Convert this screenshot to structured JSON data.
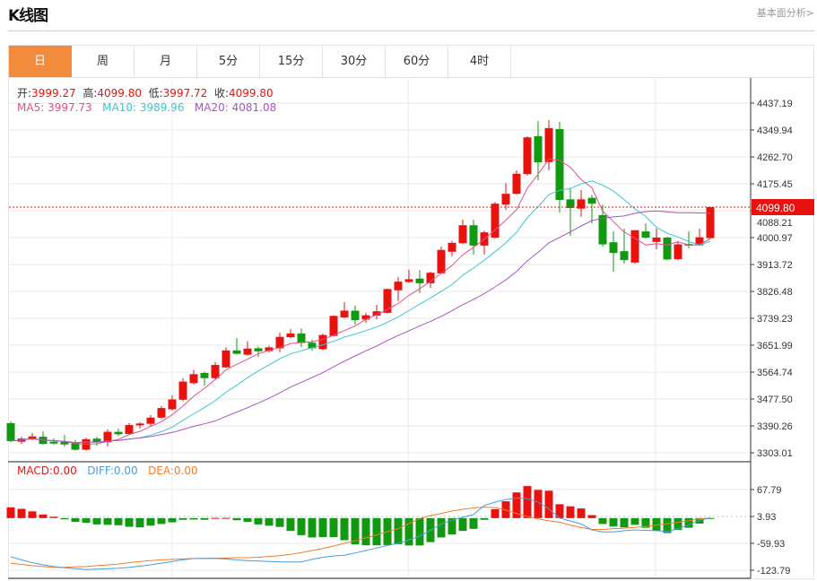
{
  "header": {
    "title": "K线图",
    "fundamental_link": "基本面分析>"
  },
  "tabs": [
    {
      "label": "日",
      "active": true
    },
    {
      "label": "周"
    },
    {
      "label": "月"
    },
    {
      "label": "5分"
    },
    {
      "label": "15分"
    },
    {
      "label": "30分"
    },
    {
      "label": "60分"
    },
    {
      "label": "4时"
    }
  ],
  "ohlc_info": {
    "open_label": "开:",
    "open": "3999.27",
    "high_label": "高:",
    "high": "4099.80",
    "low_label": "低:",
    "low": "3997.72",
    "close_label": "收:",
    "close": "4099.80"
  },
  "ma_info": {
    "ma5": "MA5: 3997.73",
    "ma10": "MA10: 3989.96",
    "ma20": "MA20: 4081.08"
  },
  "macd_info": {
    "macd": "MACD:0.00",
    "diff": "DIFF:0.00",
    "dea": "DEA:0.00"
  },
  "colors": {
    "accent": "#f28b3c",
    "up": "#e8130f",
    "down": "#119a11",
    "ma5": "#e0508a",
    "ma10": "#3cc6cc",
    "ma20": "#a655c0",
    "diff": "#4a9be0",
    "dea": "#f07c2a"
  },
  "chart_data": [
    {
      "type": "candlestick",
      "ylim": [
        3303.01,
        4437.19
      ],
      "y_ticks": [
        "4437.19",
        "4349.94",
        "4262.70",
        "4175.45",
        "4088.21",
        "4000.97",
        "3913.72",
        "3826.48",
        "3739.23",
        "3651.99",
        "3564.74",
        "3477.50",
        "3390.26",
        "3303.01"
      ],
      "last_price": "4099.80",
      "moving_averages": [
        5,
        10,
        20
      ],
      "ohlc": [
        [
          3399,
          3405,
          3338,
          3341
        ],
        [
          3339,
          3355,
          3332,
          3349
        ],
        [
          3346,
          3367,
          3344,
          3356
        ],
        [
          3355,
          3373,
          3328,
          3332
        ],
        [
          3339,
          3350,
          3330,
          3333
        ],
        [
          3339,
          3361,
          3323,
          3330
        ],
        [
          3335,
          3345,
          3310,
          3313
        ],
        [
          3313,
          3352,
          3310,
          3347
        ],
        [
          3349,
          3355,
          3326,
          3337
        ],
        [
          3337,
          3379,
          3323,
          3371
        ],
        [
          3371,
          3382,
          3358,
          3363
        ],
        [
          3364,
          3399,
          3361,
          3393
        ],
        [
          3392,
          3402,
          3382,
          3398
        ],
        [
          3397,
          3425,
          3390,
          3417
        ],
        [
          3417,
          3455,
          3412,
          3448
        ],
        [
          3444,
          3490,
          3440,
          3476
        ],
        [
          3475,
          3545,
          3470,
          3534
        ],
        [
          3529,
          3572,
          3524,
          3558
        ],
        [
          3562,
          3565,
          3520,
          3545
        ],
        [
          3545,
          3598,
          3540,
          3588
        ],
        [
          3580,
          3645,
          3578,
          3635
        ],
        [
          3635,
          3675,
          3622,
          3624
        ],
        [
          3621,
          3665,
          3618,
          3641
        ],
        [
          3642,
          3648,
          3614,
          3632
        ],
        [
          3633,
          3650,
          3628,
          3645
        ],
        [
          3642,
          3693,
          3629,
          3679
        ],
        [
          3678,
          3704,
          3674,
          3690
        ],
        [
          3690,
          3707,
          3646,
          3659
        ],
        [
          3660,
          3670,
          3634,
          3642
        ],
        [
          3639,
          3690,
          3636,
          3685
        ],
        [
          3682,
          3749,
          3680,
          3747
        ],
        [
          3742,
          3792,
          3740,
          3764
        ],
        [
          3764,
          3780,
          3719,
          3733
        ],
        [
          3735,
          3757,
          3724,
          3749
        ],
        [
          3748,
          3783,
          3736,
          3762
        ],
        [
          3757,
          3836,
          3755,
          3834
        ],
        [
          3830,
          3873,
          3795,
          3858
        ],
        [
          3857,
          3897,
          3855,
          3866
        ],
        [
          3868,
          3896,
          3821,
          3853
        ],
        [
          3853,
          3890,
          3838,
          3887
        ],
        [
          3885,
          3972,
          3883,
          3961
        ],
        [
          3955,
          3990,
          3940,
          3984
        ],
        [
          3983,
          4059,
          3980,
          4041
        ],
        [
          4041,
          4059,
          3946,
          3975
        ],
        [
          3975,
          4024,
          3946,
          4018
        ],
        [
          4001,
          4117,
          3998,
          4111
        ],
        [
          4108,
          4178,
          4091,
          4143
        ],
        [
          4143,
          4219,
          4140,
          4208
        ],
        [
          4207,
          4330,
          4202,
          4326
        ],
        [
          4330,
          4379,
          4187,
          4245
        ],
        [
          4246,
          4382,
          4219,
          4356
        ],
        [
          4353,
          4376,
          4082,
          4123
        ],
        [
          4125,
          4161,
          4007,
          4097
        ],
        [
          4095,
          4155,
          4068,
          4125
        ],
        [
          4130,
          4140,
          4047,
          4111
        ],
        [
          4074,
          4108,
          3972,
          3979
        ],
        [
          3986,
          4021,
          3890,
          3951
        ],
        [
          3957,
          4030,
          3917,
          3928
        ],
        [
          3920,
          4025,
          3917,
          4025
        ],
        [
          4021,
          4047,
          3998,
          4001
        ],
        [
          3987,
          4030,
          3963,
          4001
        ],
        [
          4001,
          4004,
          3928,
          3930
        ],
        [
          3931,
          3990,
          3928,
          3979
        ],
        [
          3980,
          4021,
          3966,
          3975
        ],
        [
          3976,
          4030,
          3974,
          4002
        ],
        [
          3999.27,
          4099.8,
          3997.72,
          4099.8
        ]
      ]
    },
    {
      "type": "bar",
      "ylim": [
        -123.79,
        67.79
      ],
      "y_ticks": [
        "67.79",
        "3.93",
        "-59.93",
        "-123.79"
      ],
      "macd_hist": [
        25.6,
        22,
        16,
        8.5,
        3,
        -3,
        -9,
        -11,
        -15,
        -16,
        -17,
        -20.6,
        -22,
        -18,
        -14,
        -10,
        -4,
        -3.5,
        -4,
        0.5,
        0.5,
        -5,
        -9,
        -15,
        -18,
        -21,
        -30.5,
        -40.5,
        -46,
        -45,
        -45,
        -52.5,
        -62.5,
        -64.6,
        -64.6,
        -64,
        -62,
        -65,
        -65,
        -57,
        -46,
        -39,
        -30.5,
        -25.6,
        -4,
        21,
        40,
        61,
        76,
        67,
        65,
        33,
        28,
        23,
        7,
        -14,
        -20,
        -22,
        -16,
        -23,
        -30,
        -35.5,
        -28,
        -23,
        -13,
        -1
      ],
      "diff": [
        -92,
        -99,
        -106,
        -111,
        -115,
        -118,
        -120,
        -122,
        -121,
        -120,
        -119,
        -117,
        -114,
        -111,
        -107,
        -103,
        -99,
        -96,
        -96,
        -96,
        -97,
        -99,
        -101,
        -102,
        -103,
        -104,
        -104,
        -104,
        -98,
        -93,
        -90,
        -88,
        -83,
        -77,
        -71,
        -65,
        -60,
        -52,
        -43,
        -29,
        -14,
        -5,
        2,
        8.5,
        30,
        38,
        44,
        48,
        46,
        38,
        22,
        0,
        -7,
        -14,
        -28,
        -33,
        -33,
        -30,
        -28,
        -29,
        -30,
        -32,
        -25,
        -16,
        -5,
        0
      ],
      "dea": [
        -107,
        -110,
        -113,
        -115,
        -117,
        -117,
        -116,
        -115,
        -113,
        -111,
        -109,
        -106,
        -103,
        -101,
        -99,
        -98,
        -97,
        -96,
        -96,
        -95,
        -95,
        -94,
        -94,
        -93,
        -91,
        -89,
        -86,
        -82,
        -77,
        -72,
        -66,
        -60,
        -54,
        -47,
        -40,
        -32,
        -25,
        -13,
        -1,
        6,
        11,
        17,
        21,
        24,
        26,
        25,
        19,
        11,
        4,
        -2,
        -6,
        -10,
        -17,
        -22,
        -27,
        -27,
        -25,
        -24,
        -22,
        -20,
        -17,
        -13,
        -10,
        -6,
        -2,
        0
      ]
    }
  ]
}
